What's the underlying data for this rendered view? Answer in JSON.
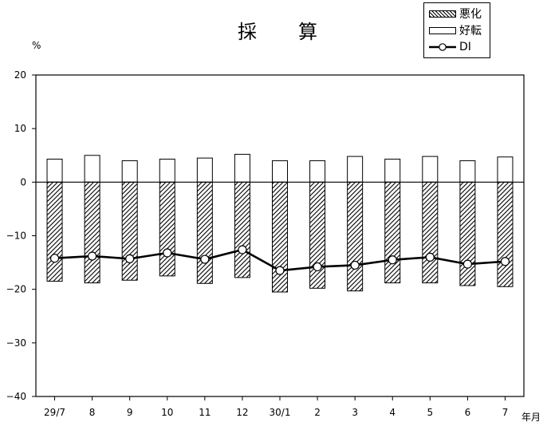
{
  "chart_data": {
    "type": "bar",
    "title": "採　算",
    "ylabel": "%",
    "xunit": "年月",
    "ylim": [
      -40,
      20
    ],
    "yticks": [
      20,
      10,
      0,
      -10,
      -20,
      -30,
      -40
    ],
    "categories": [
      "29/7",
      "8",
      "9",
      "10",
      "11",
      "12",
      "30/1",
      "2",
      "3",
      "4",
      "5",
      "6",
      "7"
    ],
    "series": [
      {
        "name": "悪化",
        "kind": "bar",
        "pattern": "hatched",
        "values": [
          -18.5,
          -18.8,
          -18.3,
          -17.5,
          -18.9,
          -17.8,
          -20.5,
          -19.8,
          -20.3,
          -18.8,
          -18.8,
          -19.3,
          -19.5
        ]
      },
      {
        "name": "好転",
        "kind": "bar",
        "pattern": "hollow",
        "values": [
          4.3,
          5.0,
          4.0,
          4.3,
          4.5,
          5.2,
          4.0,
          4.0,
          4.8,
          4.3,
          4.8,
          4.0,
          4.7
        ]
      },
      {
        "name": "DI",
        "kind": "line",
        "marker": "circle",
        "values": [
          -14.2,
          -13.8,
          -14.3,
          -13.2,
          -14.4,
          -12.6,
          -16.5,
          -15.8,
          -15.5,
          -14.5,
          -14.0,
          -15.3,
          -14.8
        ]
      }
    ],
    "grid": false,
    "legend_position": "top-right"
  }
}
